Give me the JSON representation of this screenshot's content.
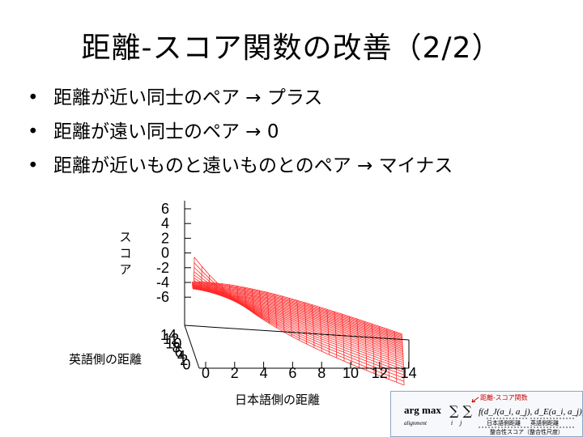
{
  "slide": {
    "title": "距離-スコア関数の改善（2/2）",
    "bullets": [
      {
        "marker": "•",
        "text": "距離が近い同士のペア → プラス"
      },
      {
        "marker": "•",
        "text": "距離が遠い同士のペア → 0"
      },
      {
        "marker": "•",
        "text": "距離が近いものと遠いものとのペア → マイナス"
      }
    ]
  },
  "chart_data": {
    "type": "surface",
    "zlabel": "スコア",
    "xlabel": "日本語側の距離",
    "ylabel": "英語側の距離",
    "z_ticks": [
      "6",
      "4",
      "2",
      "0",
      "-2",
      "-4",
      "-6"
    ],
    "x_ticks": [
      "0",
      "2",
      "4",
      "6",
      "8",
      "10",
      "12",
      "14"
    ],
    "y_ticks": [
      "14",
      "12",
      "10",
      "8",
      "6",
      "4",
      "2",
      "0"
    ],
    "zlim": [
      -6,
      6
    ],
    "xlim": [
      0,
      14
    ],
    "ylim": [
      0,
      14
    ],
    "surface_color": "#ff2a2a",
    "grid": true
  },
  "formula": {
    "argmax": "arg max",
    "argmax_sub": "alignment",
    "sums": "∑ ∑",
    "sum_subs": "i    j",
    "function": "f(d_J(a_i, a_j), d_E(a_i, a_j))",
    "top_annotation": "距離-スコア関数",
    "japanese_distance_note": "日本語側距離",
    "english_distance_note": "英語側距離",
    "score_note": "整合性スコア（整合性尺度）"
  }
}
